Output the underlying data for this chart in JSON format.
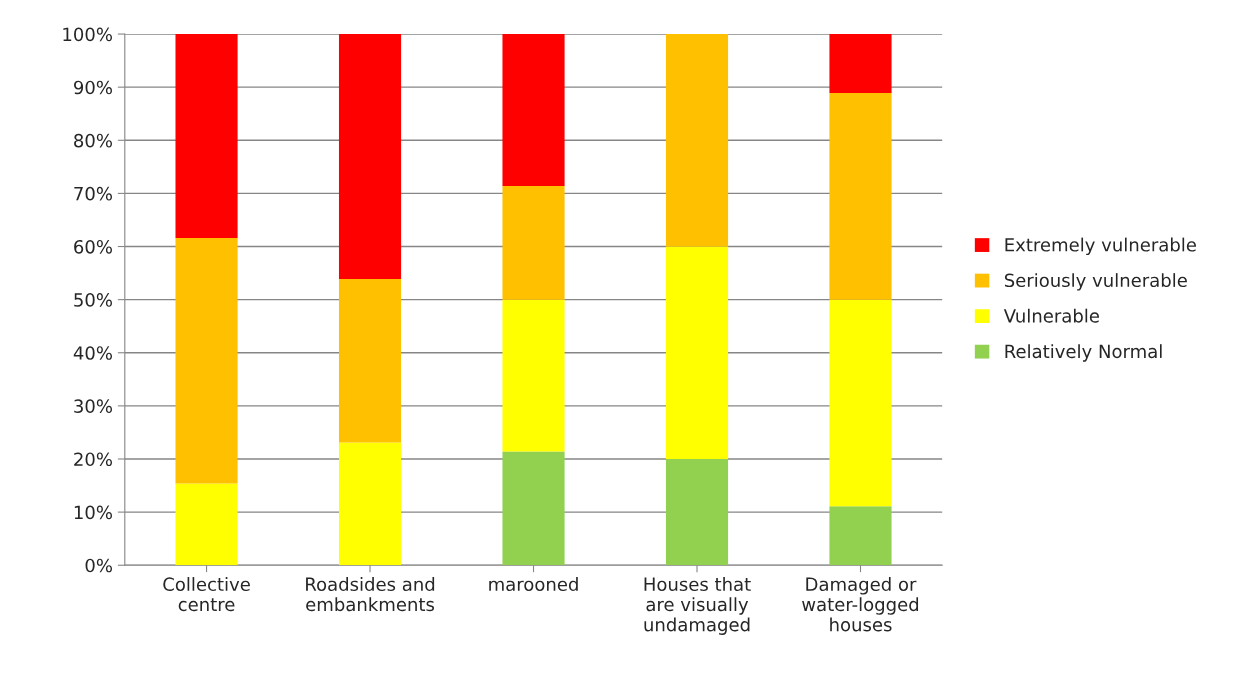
{
  "chart_data": {
    "type": "bar",
    "stacked": true,
    "categories": [
      "Collective\ncentre",
      "Roadsides and\nembankments",
      "marooned",
      "Houses that\nare visually\nundamaged",
      "Damaged or\nwater-logged\nhouses"
    ],
    "series": [
      {
        "name": "Relatively Normal",
        "color": "#92d050",
        "values": [
          null,
          null,
          21.4,
          20,
          11.1
        ]
      },
      {
        "name": "Vulnerable",
        "color": "#ffff00",
        "values": [
          15.4,
          23.1,
          28.6,
          40,
          38.9
        ]
      },
      {
        "name": "Seriously vulnerable",
        "color": "#ffc000",
        "values": [
          46.2,
          30.8,
          21.4,
          40,
          38.9
        ]
      },
      {
        "name": "Extremely vulnerable",
        "color": "#ff0000",
        "values": [
          38.5,
          46.2,
          28.6,
          null,
          11.1
        ]
      }
    ],
    "ylim": [
      0,
      100
    ],
    "yticks": [
      {
        "value": 0,
        "label": "0%"
      },
      {
        "value": 10,
        "label": "10%"
      },
      {
        "value": 20,
        "label": "20%"
      },
      {
        "value": 30,
        "label": "30%"
      },
      {
        "value": 40,
        "label": "40%"
      },
      {
        "value": 50,
        "label": "50%"
      },
      {
        "value": 60,
        "label": "60%"
      },
      {
        "value": 70,
        "label": "70%"
      },
      {
        "value": 80,
        "label": "80%"
      },
      {
        "value": 90,
        "label": "90%"
      },
      {
        "value": 100,
        "label": "100%"
      }
    ],
    "grid": "y",
    "legend": "right"
  }
}
